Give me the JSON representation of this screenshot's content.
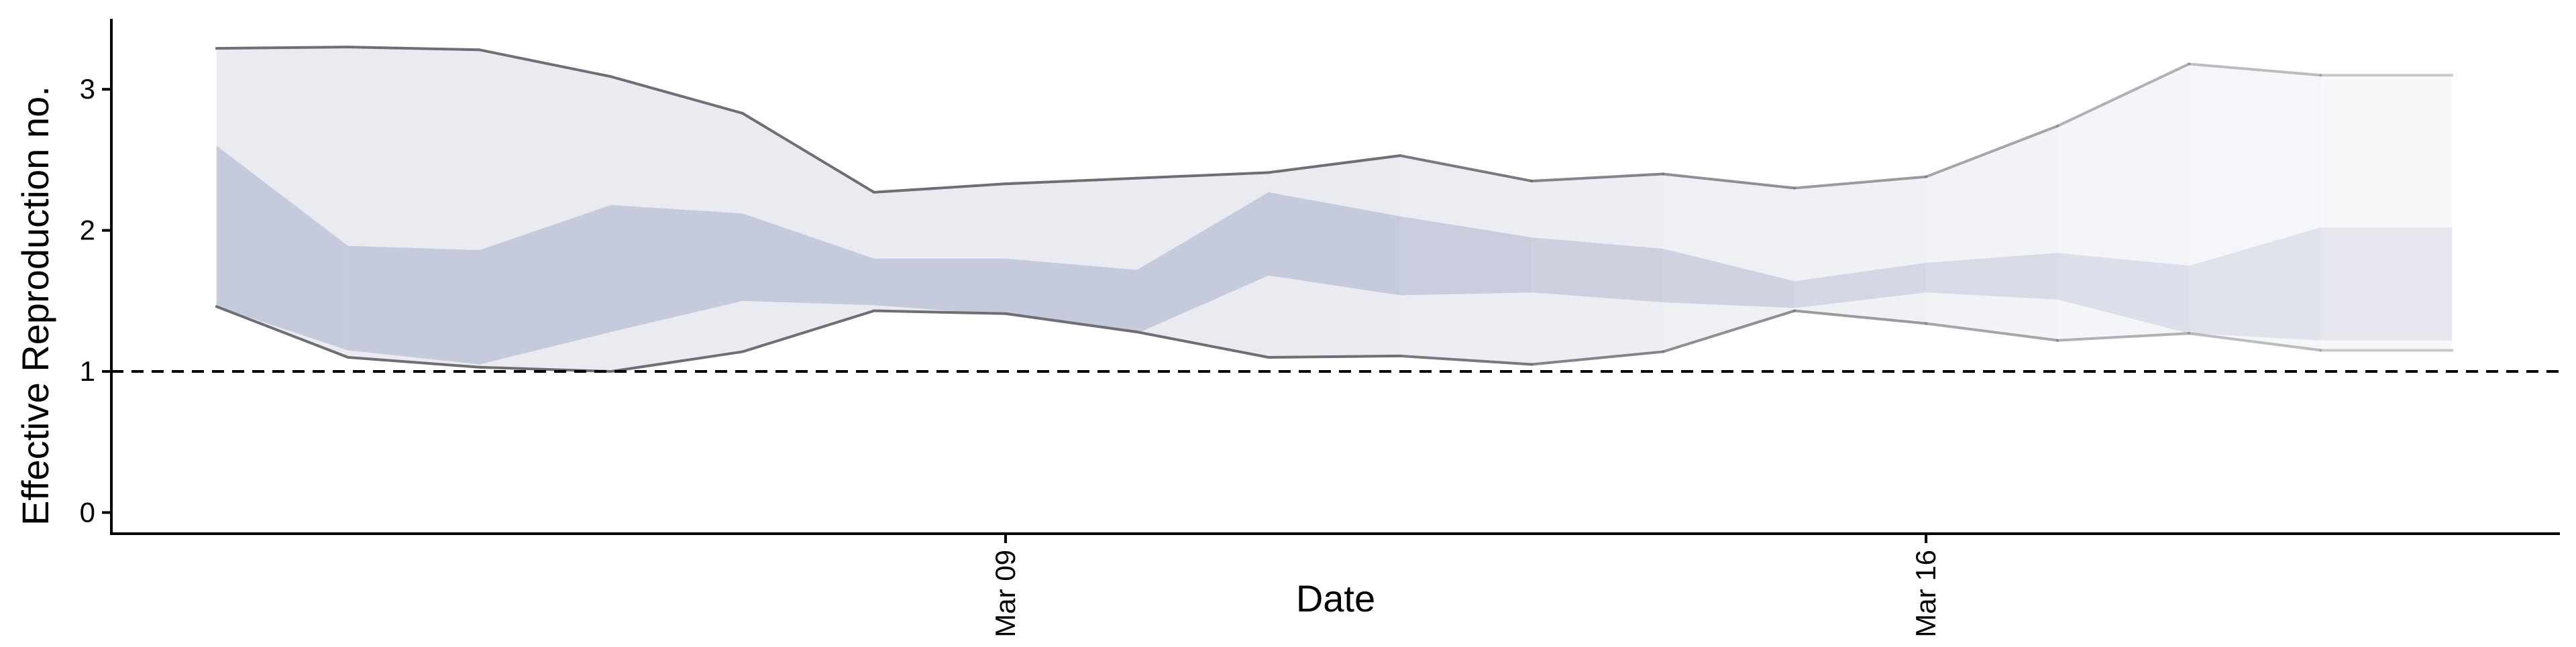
{
  "chart_data": {
    "type": "area",
    "title": "",
    "xlabel": "Date",
    "ylabel": "Effective Reproduction no.",
    "x": [
      "2020-03-03",
      "2020-03-04",
      "2020-03-05",
      "2020-03-06",
      "2020-03-07",
      "2020-03-08",
      "2020-03-09",
      "2020-03-10",
      "2020-03-11",
      "2020-03-12",
      "2020-03-13",
      "2020-03-14",
      "2020-03-15",
      "2020-03-16",
      "2020-03-17",
      "2020-03-18",
      "2020-03-19",
      "2020-03-20"
    ],
    "x_tick_labels": [
      {
        "date": "2020-03-09",
        "label": "Mar 09"
      },
      {
        "date": "2020-03-16",
        "label": "Mar 16"
      }
    ],
    "y_ticks": [
      0,
      1,
      2,
      3
    ],
    "ylim": [
      -0.15,
      3.5
    ],
    "xlim": [
      "2020-03-03",
      "2020-03-20"
    ],
    "reference_line": {
      "y": 1,
      "style": "dashed"
    },
    "series": [
      {
        "role": "outer-band",
        "upper": [
          3.29,
          3.3,
          3.28,
          3.09,
          2.83,
          2.27,
          2.33,
          2.37,
          2.41,
          2.53,
          2.35,
          2.4,
          2.3,
          2.38,
          2.74,
          3.18,
          3.1,
          3.1
        ],
        "lower": [
          1.46,
          1.1,
          1.03,
          1.0,
          1.14,
          1.43,
          1.41,
          1.28,
          1.1,
          1.11,
          1.05,
          1.14,
          1.43,
          1.34,
          1.22,
          1.27,
          1.15,
          1.15
        ]
      },
      {
        "role": "inner-band",
        "upper": [
          2.6,
          1.89,
          1.86,
          2.18,
          2.12,
          1.8,
          1.8,
          1.72,
          2.27,
          2.1,
          1.95,
          1.87,
          1.64,
          1.77,
          1.84,
          1.75,
          2.02,
          2.02
        ],
        "lower": [
          1.46,
          1.15,
          1.05,
          1.28,
          1.5,
          1.47,
          1.4,
          1.27,
          1.68,
          1.54,
          1.56,
          1.49,
          1.45,
          1.56,
          1.51,
          1.27,
          1.22,
          1.22
        ]
      }
    ],
    "colors": {
      "outer_band": "#e8eaf0",
      "inner_band": "#c3c8da",
      "bound_line": "#6e6e74",
      "axis": "#000000",
      "reference": "#000000"
    },
    "fade_toward_right": true,
    "grid": false
  }
}
